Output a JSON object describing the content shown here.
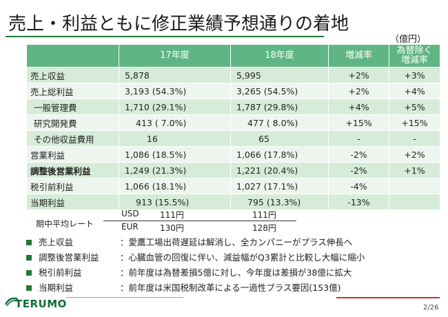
{
  "title": "売上・利益ともに修正業績予想通りの着地",
  "unit": "（億円）",
  "table": {
    "headers": [
      "",
      "17年度",
      "18年度",
      "増減率",
      "為替除く増減率"
    ],
    "header_last_lines": [
      "為替除く",
      "増減率"
    ],
    "rows": [
      {
        "label": "売上収益",
        "fy17": "5,878",
        "fy18": "5,995",
        "change": "+2%",
        "change_exfx": "+3%"
      },
      {
        "label": "売上総利益",
        "fy17": "3,193 (54.3%)",
        "fy18": "3,265 (54.5%)",
        "change": "+2%",
        "change_exfx": "+4%"
      },
      {
        "label": "一般管理費",
        "fy17": "1,710 (29.1%)",
        "fy18": "1,787 (29.8%)",
        "change": "+4%",
        "change_exfx": "+5%"
      },
      {
        "label": "研究開発費",
        "fy17": "413 (  7.0%)",
        "fy18": "477 (  8.0%)",
        "change": "+15%",
        "change_exfx": "+15%"
      },
      {
        "label": "その他収益費用",
        "fy17": "16",
        "fy18": "65",
        "change": "-",
        "change_exfx": "-"
      },
      {
        "label": "営業利益",
        "fy17": "1,086 (18.5%)",
        "fy18": "1,066 (17.8%)",
        "change": "-2%",
        "change_exfx": "+2%"
      },
      {
        "label": "調整後営業利益",
        "fy17": "1,249 (21.3%)",
        "fy18": "1,221 (20.4%)",
        "change": "-2%",
        "change_exfx": "+1%"
      },
      {
        "label": "税引前利益",
        "fy17": "1,066 (18.1%)",
        "fy18": "1,027 (17.1%)",
        "change": "-4%",
        "change_exfx": ""
      },
      {
        "label": "当期利益",
        "fy17": "913 (15.5%)",
        "fy18": "795 (13.3%)",
        "change": "-13%",
        "change_exfx": ""
      }
    ]
  },
  "fx": {
    "label": "期中平均レート",
    "usd_label": "USD",
    "usd_17": "111円",
    "usd_18": "111円",
    "eur_label": "EUR",
    "eur_17": "130円",
    "eur_18": "128円"
  },
  "bullets": [
    {
      "label": "売上収益",
      "text": "：愛鷹工場出荷遅延は解消し、全カンパニーがプラス伸長へ"
    },
    {
      "label": "調整後営業利益",
      "text": "：心臓血管の回復に伴い、減益幅がQ3累計と比較し大幅に縮小"
    },
    {
      "label": "税引前利益",
      "text": "：前年度は為替差損5億に対し、今年度は差損が38億に拡大"
    },
    {
      "label": "当期利益",
      "text": "：前年度は米国税制改革による一過性プラス要因(153億)"
    }
  ],
  "footer": {
    "logo": "TERUMO",
    "page": "2/26"
  },
  "colors": {
    "header": "#5fb584",
    "row_dark": "#d6ecd8",
    "row_light": "#edf6ee",
    "accent_green": "#1f7a3a",
    "accent_red": "#d12b2b"
  }
}
